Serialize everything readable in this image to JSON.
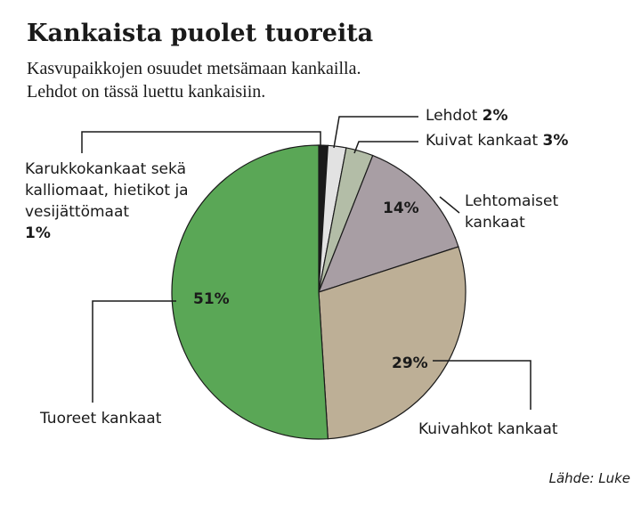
{
  "chart_data": {
    "type": "pie",
    "title": "Kankaista puolet tuoreita",
    "subtitle": [
      "Kasvupaikkojen osuudet metsämaan kankailla.",
      "Lehdot on tässä luettu kankaisiin."
    ],
    "categories": [
      "Karukkokankaat sekä kalliomaat, hietikot ja vesijättömaat",
      "Lehdot",
      "Kuivat kankaat",
      "Lehtomaiset kankaat",
      "Kuivahkot kankaat",
      "Tuoreet kankaat"
    ],
    "values": [
      1,
      2,
      3,
      14,
      29,
      51
    ],
    "value_labels": [
      "1%",
      "2%",
      "3%",
      "14%",
      "29%",
      "51%"
    ],
    "colors": [
      "#1a1a1a",
      "#e2e2e2",
      "#b3bda7",
      "#a89ea4",
      "#bdaf96",
      "#5aa756"
    ],
    "source": "Lähde: Luke"
  }
}
